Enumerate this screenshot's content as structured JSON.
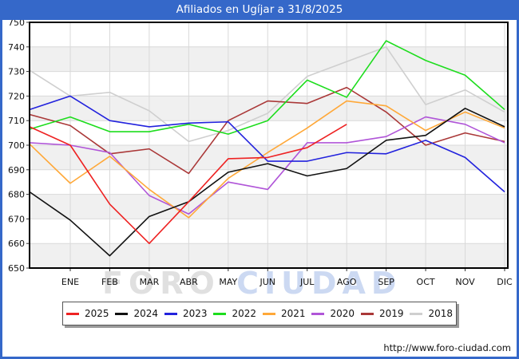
{
  "chart_data": {
    "type": "line",
    "title": "Afiliados en Ugíjar a 31/8/2025",
    "x_labels": [
      "ENE",
      "FEB",
      "MAR",
      "ABR",
      "MAY",
      "JUN",
      "JUL",
      "AGO",
      "SEP",
      "OCT",
      "NOV",
      "DIC"
    ],
    "ylim": [
      650,
      750
    ],
    "y_ticks": [
      650,
      660,
      670,
      680,
      690,
      700,
      710,
      720,
      730,
      740,
      750
    ],
    "grid": true,
    "legend_position": "bottom",
    "series": [
      {
        "name": "2025",
        "color": "#ee2222",
        "values": [
          707.5,
          700,
          676,
          660,
          677,
          694.5,
          695,
          699,
          708.5
        ]
      },
      {
        "name": "2024",
        "color": "#111111",
        "values": [
          681,
          669.5,
          655,
          671,
          677,
          689,
          692.5,
          687.5,
          690.5,
          702,
          704,
          715,
          707.5
        ]
      },
      {
        "name": "2023",
        "color": "#2222dd",
        "values": [
          714.5,
          720,
          710,
          707.5,
          709,
          709.5,
          693.5,
          693.5,
          697,
          696.5,
          702,
          695,
          681
        ]
      },
      {
        "name": "2022",
        "color": "#1ddd1d",
        "values": [
          706.5,
          711.5,
          705.5,
          705.5,
          708.5,
          704.5,
          710,
          726.5,
          719.5,
          742.5,
          734.5,
          728.5,
          714.5
        ]
      },
      {
        "name": "2021",
        "color": "#ffa838",
        "values": [
          700.5,
          684.5,
          695.5,
          682,
          670.5,
          686.5,
          697,
          707,
          718,
          716,
          706,
          713.5,
          707
        ]
      },
      {
        "name": "2020",
        "color": "#b055d8",
        "values": [
          701,
          700,
          697,
          679.5,
          672,
          685,
          682,
          701,
          701,
          703.5,
          711.5,
          708.5,
          701
        ]
      },
      {
        "name": "2019",
        "color": "#aa3838",
        "values": [
          712.5,
          708,
          696.5,
          698.5,
          688.5,
          710,
          718,
          717,
          723.5,
          713.5,
          700,
          705,
          701.5
        ]
      },
      {
        "name": "2018",
        "color": "#cfcfcf",
        "values": [
          730.5,
          720,
          721.5,
          714,
          701.5,
          706,
          713,
          728,
          734,
          740,
          716.5,
          722.5,
          713.5
        ]
      }
    ]
  },
  "watermark": {
    "part1": "FORO ",
    "part2": "CIUDAD"
  },
  "footer": {
    "url": "http://www.foro-ciudad.com"
  },
  "colors": {
    "frame": "#3568c9",
    "title_text": "#ffffff",
    "plot_band": "#f0f0f0",
    "grid_line": "#d9d9d9",
    "plot_border": "#000000"
  }
}
